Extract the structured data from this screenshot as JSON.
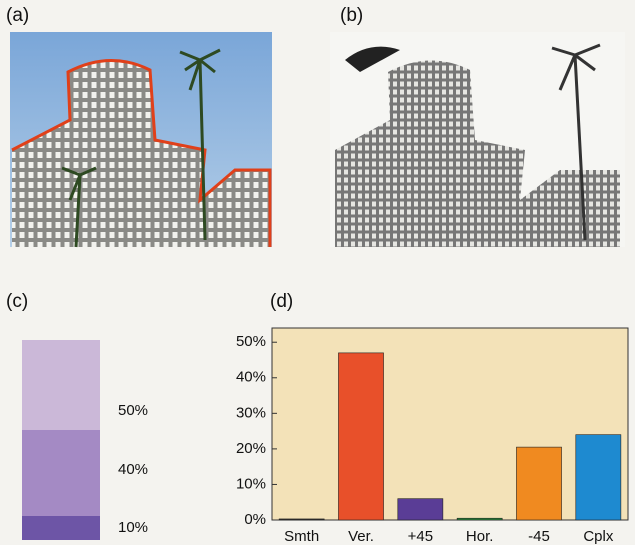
{
  "panels": {
    "a": "(a)",
    "b": "(b)",
    "c": "(c)",
    "d": "(d)"
  },
  "panel_c": {
    "labels": [
      "50%",
      "40%",
      "10%"
    ]
  },
  "chart_data": {
    "type": "bar",
    "categories": [
      "Smth",
      "Ver.",
      "+45",
      "Hor.",
      "-45",
      "Cplx"
    ],
    "values": [
      0.3,
      47,
      6,
      0.5,
      20.5,
      24
    ],
    "colors": [
      "#333333",
      "#e8502a",
      "#5a3d96",
      "#2a8a3a",
      "#f08a20",
      "#1e8ad0"
    ],
    "ylim": [
      0,
      54
    ],
    "yticks": [
      {
        "value": 0,
        "label": "0%"
      },
      {
        "value": 10,
        "label": "10%"
      },
      {
        "value": 20,
        "label": "20%"
      },
      {
        "value": 30,
        "label": "30%"
      },
      {
        "value": 40,
        "label": "40%"
      },
      {
        "value": 50,
        "label": "50%"
      }
    ],
    "grid": false
  }
}
